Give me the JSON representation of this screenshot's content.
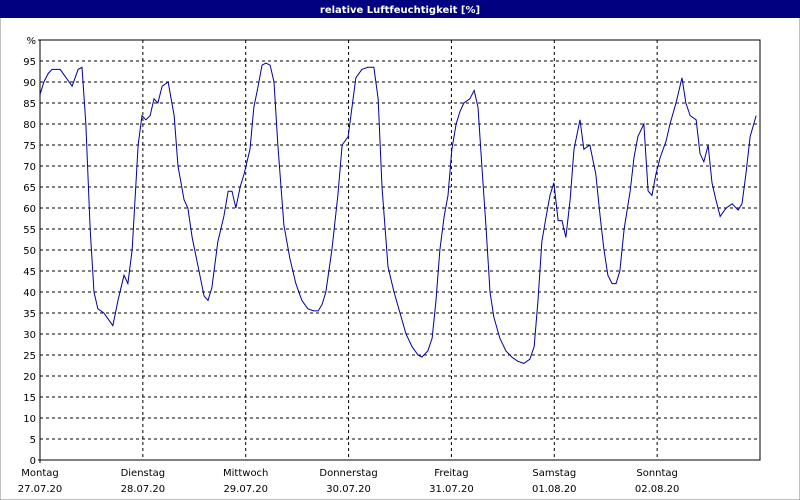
{
  "chart_data": {
    "type": "line",
    "title": "relative Luftfeuchtigkeit [%]",
    "xlim": [
      0,
      168
    ],
    "xticks": [
      {
        "value": 0,
        "label": "Montag",
        "date": "27.07.20"
      },
      {
        "value": 24,
        "label": "Dienstag",
        "date": "28.07.20"
      },
      {
        "value": 48,
        "label": "Mittwoch",
        "date": "29.07.20"
      },
      {
        "value": 72,
        "label": "Donnerstag",
        "date": "30.07.20"
      },
      {
        "value": 96,
        "label": "Freitag",
        "date": "31.07.20"
      },
      {
        "value": 120,
        "label": "Samstag",
        "date": "01.08.20"
      },
      {
        "value": 144,
        "label": "Sonntag",
        "date": "02.08.20"
      }
    ],
    "ylim": [
      0,
      100
    ],
    "yticks": [
      0,
      5,
      10,
      15,
      20,
      25,
      30,
      35,
      40,
      45,
      50,
      55,
      60,
      65,
      70,
      75,
      80,
      85,
      90,
      95,
      {
        "value": 100,
        "label": "%"
      }
    ],
    "grid": true,
    "x": [
      0,
      0.9,
      1.9,
      2.8,
      4.7,
      6.1,
      7.5,
      8.9,
      9.8,
      10.7,
      11.7,
      12.6,
      13.5,
      14.9,
      16.3,
      17.0,
      18.2,
      19.6,
      20.5,
      21.5,
      22.9,
      23.8,
      24.7,
      25.7,
      26.6,
      27.5,
      28.5,
      29.9,
      31.3,
      32.2,
      33.6,
      34.5,
      35.5,
      36.9,
      38.3,
      39.2,
      40.1,
      41.5,
      42.9,
      43.9,
      44.8,
      45.7,
      46.7,
      47.6,
      49.0,
      49.9,
      50.9,
      51.8,
      52.7,
      53.7,
      54.6,
      55.5,
      56.9,
      58.3,
      59.7,
      61.1,
      62.5,
      63.9,
      64.9,
      65.8,
      66.7,
      68.1,
      69.5,
      70.5,
      71.9,
      72.8,
      73.7,
      75.1,
      76.5,
      77.9,
      78.9,
      79.8,
      81.2,
      82.6,
      84.0,
      85.4,
      86.8,
      88.2,
      89.1,
      90.5,
      91.5,
      92.4,
      93.3,
      94.3,
      95.2,
      96.1,
      97.1,
      98.0,
      98.9,
      100.3,
      101.3,
      102.2,
      103.1,
      104.1,
      105.0,
      105.9,
      107.3,
      108.7,
      110.1,
      111.5,
      112.9,
      114.3,
      115.3,
      116.2,
      117.1,
      118.1,
      119.0,
      119.9,
      120.9,
      121.8,
      122.7,
      123.7,
      124.6,
      126.0,
      126.9,
      128.3,
      129.7,
      130.7,
      131.6,
      132.5,
      133.5,
      134.4,
      135.3,
      136.3,
      137.7,
      138.6,
      139.5,
      140.9,
      141.9,
      142.8,
      143.7,
      144.7,
      146.1,
      147.0,
      148.4,
      149.8,
      150.7,
      151.7,
      153.1,
      154.0,
      154.9,
      155.9,
      156.8,
      157.7,
      158.7,
      160.1,
      161.5,
      162.9,
      163.8,
      164.7,
      165.7,
      167.1
    ],
    "series": [
      {
        "name": "relative Luftfeuchtigkeit",
        "color": "#0000a0",
        "values": [
          87,
          90,
          92,
          93,
          93,
          91,
          89,
          93,
          93.5,
          80,
          55,
          40,
          36,
          35,
          33,
          32,
          38,
          44,
          42,
          50,
          75,
          82,
          81,
          82,
          86,
          85,
          89,
          90,
          82,
          70,
          62,
          60,
          53,
          46,
          39,
          38,
          41,
          52,
          58,
          64,
          64,
          60,
          65,
          68,
          74,
          84,
          89,
          94,
          94.5,
          94,
          90,
          75,
          56,
          48,
          42,
          38,
          36,
          35.5,
          35.5,
          37,
          40,
          50,
          63,
          75,
          77,
          84,
          91,
          93,
          93.5,
          93.5,
          86,
          65,
          46,
          40,
          35,
          30,
          27,
          25,
          24.5,
          26,
          29,
          38,
          50,
          58,
          63,
          74,
          80,
          83,
          85,
          86,
          88,
          84,
          70,
          55,
          40,
          34,
          29,
          26,
          24.5,
          23.5,
          23,
          24,
          27,
          38,
          52,
          58,
          63,
          66,
          57,
          57,
          53,
          62,
          74,
          81,
          74,
          75,
          68,
          58,
          50,
          44,
          42,
          42,
          45,
          55,
          64,
          72,
          77,
          80,
          64,
          63,
          68,
          72,
          76,
          80,
          85,
          91,
          85,
          82,
          81,
          73,
          71,
          75,
          66,
          62,
          58,
          60,
          61,
          59.5,
          61,
          68,
          77,
          82
        ]
      }
    ]
  }
}
